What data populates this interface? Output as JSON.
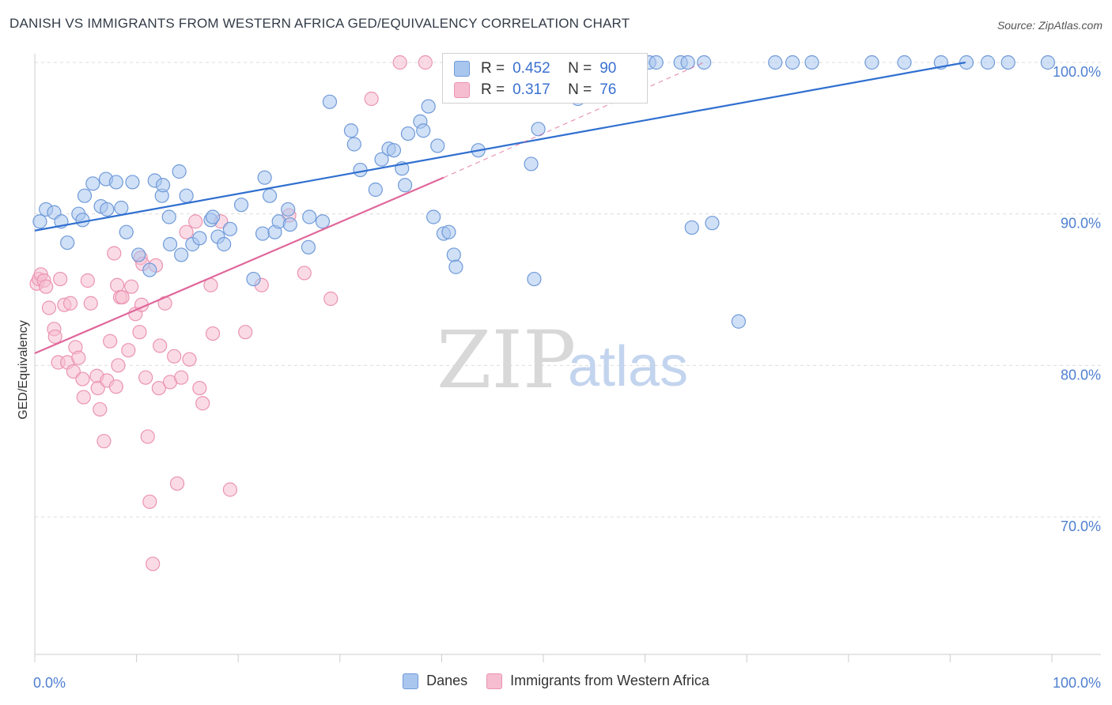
{
  "title": "DANISH VS IMMIGRANTS FROM WESTERN AFRICA GED/EQUIVALENCY CORRELATION CHART",
  "source": "Source: ZipAtlas.com",
  "watermark": {
    "zip": "ZIP",
    "atlas": "atlas"
  },
  "colors": {
    "danes_fill": "#a9c6ef",
    "danes_stroke": "#6f9ad9",
    "danes_line": "#2f6fd0",
    "wa_fill": "#f6bdd0",
    "wa_stroke": "#eb93b2",
    "wa_line": "#e0679a",
    "grid": "#dcdcdc",
    "tick_label": "#4e7fd0"
  },
  "legend": {
    "rows": [
      {
        "r_label": "R =",
        "r_value": "0.452",
        "n_label": "N =",
        "n_value": "90"
      },
      {
        "r_label": "R =",
        "r_value": "0.317",
        "n_label": "N =",
        "n_value": "76"
      }
    ]
  },
  "bottom_legend": [
    "Danes",
    "Immigrants from Western Africa"
  ],
  "chart_data": {
    "type": "scatter",
    "title": "DANISH VS IMMIGRANTS FROM WESTERN AFRICA GED/EQUIVALENCY CORRELATION CHART",
    "xlabel": "",
    "ylabel": "GED/Equivalency",
    "xlim": [
      0,
      100
    ],
    "ylim": [
      61,
      101.5
    ],
    "x_tick_labels": [
      "0.0%",
      "100.0%"
    ],
    "y_ticks": [
      70,
      80,
      90,
      100
    ],
    "y_tick_labels": [
      "70.0%",
      "80.0%",
      "90.0%",
      "100.0%"
    ],
    "grid": true,
    "legend_placement": "top-center",
    "series": [
      {
        "name": "Danes",
        "r": 0.452,
        "n": 90,
        "trend": {
          "x": [
            0,
            91.5
          ],
          "y": [
            88.9,
            100
          ]
        },
        "points": [
          [
            0.5,
            89.5
          ],
          [
            1.1,
            90.3
          ],
          [
            1.9,
            90.1
          ],
          [
            2.6,
            89.5
          ],
          [
            3.2,
            88.1
          ],
          [
            4.3,
            90.0
          ],
          [
            4.9,
            91.2
          ],
          [
            4.7,
            89.6
          ],
          [
            5.7,
            92.0
          ],
          [
            6.5,
            90.5
          ],
          [
            7.0,
            92.3
          ],
          [
            7.1,
            90.3
          ],
          [
            8.0,
            92.1
          ],
          [
            8.5,
            90.4
          ],
          [
            9.0,
            88.8
          ],
          [
            9.6,
            92.1
          ],
          [
            10.2,
            87.3
          ],
          [
            11.3,
            86.3
          ],
          [
            11.8,
            92.2
          ],
          [
            12.5,
            91.2
          ],
          [
            12.6,
            91.9
          ],
          [
            13.2,
            89.8
          ],
          [
            13.3,
            88.0
          ],
          [
            14.2,
            92.8
          ],
          [
            14.4,
            87.3
          ],
          [
            14.9,
            91.2
          ],
          [
            15.5,
            88.0
          ],
          [
            16.2,
            88.4
          ],
          [
            17.3,
            89.6
          ],
          [
            17.5,
            89.8
          ],
          [
            18.0,
            88.5
          ],
          [
            18.6,
            88.0
          ],
          [
            19.2,
            89.0
          ],
          [
            20.3,
            90.6
          ],
          [
            21.5,
            85.7
          ],
          [
            22.4,
            88.7
          ],
          [
            22.6,
            92.4
          ],
          [
            23.1,
            91.2
          ],
          [
            23.6,
            88.8
          ],
          [
            24.0,
            89.5
          ],
          [
            24.9,
            90.3
          ],
          [
            25.1,
            89.3
          ],
          [
            26.9,
            87.8
          ],
          [
            27.0,
            89.8
          ],
          [
            28.3,
            89.5
          ],
          [
            29.0,
            97.4
          ],
          [
            31.1,
            95.5
          ],
          [
            31.4,
            94.6
          ],
          [
            32.0,
            92.9
          ],
          [
            33.5,
            91.6
          ],
          [
            34.1,
            93.6
          ],
          [
            34.8,
            94.3
          ],
          [
            35.3,
            94.2
          ],
          [
            36.1,
            93.0
          ],
          [
            36.4,
            91.9
          ],
          [
            36.7,
            95.3
          ],
          [
            37.9,
            96.1
          ],
          [
            38.2,
            95.5
          ],
          [
            38.7,
            97.1
          ],
          [
            39.2,
            89.8
          ],
          [
            39.6,
            94.5
          ],
          [
            40.2,
            88.7
          ],
          [
            40.7,
            88.8
          ],
          [
            41.2,
            87.3
          ],
          [
            41.4,
            86.5
          ],
          [
            43.6,
            94.2
          ],
          [
            47.0,
            98.6
          ],
          [
            48.8,
            93.3
          ],
          [
            49.1,
            85.7
          ],
          [
            49.5,
            95.6
          ],
          [
            49.8,
            100
          ],
          [
            51.1,
            100
          ],
          [
            51.5,
            100
          ],
          [
            51.9,
            100
          ],
          [
            53.4,
            97.6
          ],
          [
            53.5,
            100
          ],
          [
            54.1,
            100
          ],
          [
            54.2,
            100
          ],
          [
            54.6,
            100
          ],
          [
            55.3,
            100
          ],
          [
            56.5,
            100
          ],
          [
            57.7,
            100
          ],
          [
            59.6,
            100
          ],
          [
            60.4,
            100
          ],
          [
            61.1,
            100
          ],
          [
            63.5,
            100
          ],
          [
            64.2,
            100
          ],
          [
            64.6,
            89.1
          ],
          [
            65.8,
            100
          ],
          [
            66.6,
            89.4
          ],
          [
            69.2,
            82.9
          ],
          [
            72.8,
            100
          ],
          [
            74.5,
            100
          ],
          [
            76.4,
            100
          ],
          [
            82.3,
            100
          ],
          [
            85.5,
            100
          ],
          [
            89.1,
            100
          ],
          [
            91.6,
            100
          ],
          [
            93.7,
            100
          ],
          [
            95.7,
            100
          ],
          [
            99.6,
            100
          ]
        ]
      },
      {
        "name": "Immigrants from Western Africa",
        "r": 0.317,
        "n": 76,
        "trend": {
          "x": [
            0,
            40.2
          ],
          "y": [
            80.8,
            92.4
          ]
        },
        "trend_dashed": {
          "x": [
            40.2,
            65.8
          ],
          "y": [
            92.4,
            100
          ]
        },
        "points": [
          [
            0.2,
            85.4
          ],
          [
            0.4,
            85.7
          ],
          [
            0.6,
            86.0
          ],
          [
            0.9,
            85.6
          ],
          [
            1.1,
            85.2
          ],
          [
            1.4,
            83.8
          ],
          [
            1.9,
            82.4
          ],
          [
            2.0,
            81.9
          ],
          [
            2.3,
            80.2
          ],
          [
            2.5,
            85.7
          ],
          [
            2.9,
            84.0
          ],
          [
            3.2,
            80.2
          ],
          [
            3.5,
            84.1
          ],
          [
            3.8,
            79.6
          ],
          [
            4.0,
            81.2
          ],
          [
            4.3,
            80.5
          ],
          [
            4.7,
            79.1
          ],
          [
            4.8,
            77.9
          ],
          [
            5.2,
            85.6
          ],
          [
            5.5,
            84.1
          ],
          [
            6.1,
            79.3
          ],
          [
            6.2,
            78.5
          ],
          [
            6.4,
            77.1
          ],
          [
            6.8,
            75.0
          ],
          [
            7.1,
            79.0
          ],
          [
            7.4,
            81.6
          ],
          [
            7.8,
            87.4
          ],
          [
            8.0,
            78.6
          ],
          [
            8.1,
            85.3
          ],
          [
            8.2,
            80.0
          ],
          [
            8.4,
            84.5
          ],
          [
            8.6,
            84.5
          ],
          [
            9.2,
            81.0
          ],
          [
            9.5,
            85.2
          ],
          [
            9.9,
            83.4
          ],
          [
            10.3,
            82.2
          ],
          [
            10.4,
            87.1
          ],
          [
            10.5,
            84.0
          ],
          [
            10.6,
            86.7
          ],
          [
            10.9,
            79.2
          ],
          [
            11.1,
            75.3
          ],
          [
            11.3,
            71.0
          ],
          [
            11.6,
            66.9
          ],
          [
            11.9,
            86.6
          ],
          [
            12.2,
            78.5
          ],
          [
            12.3,
            81.3
          ],
          [
            12.8,
            84.1
          ],
          [
            13.3,
            78.9
          ],
          [
            13.7,
            80.6
          ],
          [
            14.0,
            72.2
          ],
          [
            14.4,
            79.2
          ],
          [
            14.9,
            88.8
          ],
          [
            15.2,
            80.4
          ],
          [
            15.8,
            89.5
          ],
          [
            16.2,
            78.5
          ],
          [
            16.5,
            77.5
          ],
          [
            17.3,
            85.3
          ],
          [
            17.5,
            82.1
          ],
          [
            18.3,
            89.5
          ],
          [
            19.2,
            71.8
          ],
          [
            20.7,
            82.2
          ],
          [
            22.3,
            85.3
          ],
          [
            25.0,
            89.9
          ],
          [
            26.5,
            86.1
          ],
          [
            29.1,
            84.4
          ],
          [
            33.1,
            97.6
          ],
          [
            35.9,
            100
          ],
          [
            38.4,
            100
          ],
          [
            52.8,
            98.6
          ],
          [
            55.3,
            100
          ],
          [
            59.6,
            100
          ]
        ]
      }
    ]
  }
}
